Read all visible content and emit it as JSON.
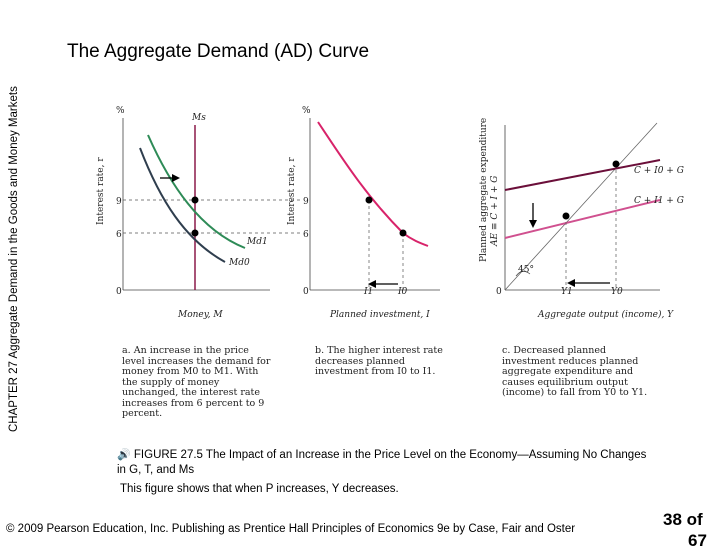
{
  "side_label": {
    "chapter": "CHAPTER 27",
    "text": "Aggregate Demand in the Goods and Money Markets"
  },
  "title": "The Aggregate Demand (AD) Curve",
  "panels": {
    "money": {
      "unit": "%",
      "y_axis": "Interest rate, r",
      "x_axis": "Money, M",
      "ticks": [
        "9",
        "6",
        "0"
      ],
      "supply_label": "Ms",
      "demand_labels": [
        "Md1",
        "Md0"
      ],
      "caption": "a. An increase in the price level increases the demand for money from M0 to M1. With the supply of money unchanged, the interest rate increases from 6 percent to 9 percent."
    },
    "investment": {
      "unit": "%",
      "y_axis": "Interest rate, r",
      "x_axis": "Planned investment, I",
      "ticks": [
        "9",
        "6",
        "0"
      ],
      "x_ticks": [
        "I1",
        "I0"
      ],
      "caption": "b. The higher interest rate decreases planned investment from I0 to I1."
    },
    "output": {
      "y_axis_line1": "Planned aggregate expenditure",
      "y_axis_line2": "AE ≡ C + I + G",
      "x_axis": "Aggregate output (income), Y",
      "x_ticks": [
        "0",
        "Y1",
        "Y0"
      ],
      "line_labels": [
        "C + I0 + G",
        "C + I1 + G"
      ],
      "angle_label": "45°",
      "caption": "c. Decreased planned investment reduces planned aggregate expenditure and causes equilibrium output (income) to fall from Y0 to Y1."
    }
  },
  "figure_caption": {
    "icon": "speaker-icon",
    "text": "FIGURE 27.5  The Impact of an Increase in the Price Level on the Economy—Assuming No Changes in G, T, and Ms"
  },
  "description": "This figure shows that when P increases, Y decreases.",
  "footer": "© 2009 Pearson Education, Inc. Publishing as Prentice Hall  Principles of Economics 9e by Case, Fair and Oster",
  "page": {
    "line1": "38 of",
    "line2": "67"
  },
  "colors": {
    "green": "#2e8b57",
    "slate": "#2f3e4e",
    "magenta": "#d8236a",
    "pink": "#d0508f",
    "maroon": "#6b0f3a"
  }
}
